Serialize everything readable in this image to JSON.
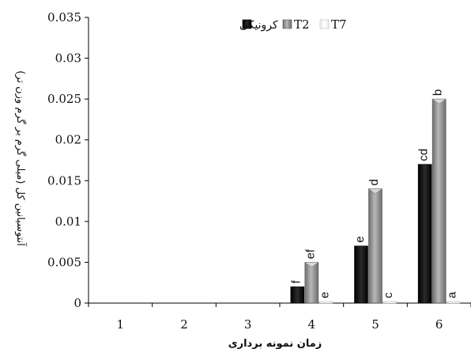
{
  "chart_data": {
    "type": "bar",
    "title": "",
    "xlabel": "زمان نمونه برداری",
    "ylabel": "آنتوسیانین کل (میلی گرم بر گرم وزن تر)",
    "categories": [
      "1",
      "2",
      "3",
      "4",
      "5",
      "6"
    ],
    "ylim": [
      0,
      0.035
    ],
    "yticks": [
      "0",
      "0.005",
      "0.01",
      "0.015",
      "0.02",
      "0.025",
      "0.03",
      "0.035"
    ],
    "grid": false,
    "legend_position": "top",
    "series": [
      {
        "name": "کرونیکی",
        "color": "#111111",
        "values": [
          0,
          0,
          0,
          0.002,
          0.007,
          0.017
        ],
        "labels": [
          "",
          "",
          "",
          "f",
          "e",
          "cd"
        ]
      },
      {
        "name": "T2",
        "color": "#8a8a8a",
        "values": [
          0,
          0,
          0,
          0.005,
          0.014,
          0.025
        ],
        "labels": [
          "",
          "",
          "",
          "ef",
          "d",
          "b"
        ]
      },
      {
        "name": "T7",
        "color": "#f4f4f4",
        "values": [
          0,
          0,
          0,
          0.0002,
          0.0002,
          0.0002
        ],
        "labels": [
          "",
          "",
          "",
          "e",
          "c",
          "a"
        ]
      }
    ]
  }
}
